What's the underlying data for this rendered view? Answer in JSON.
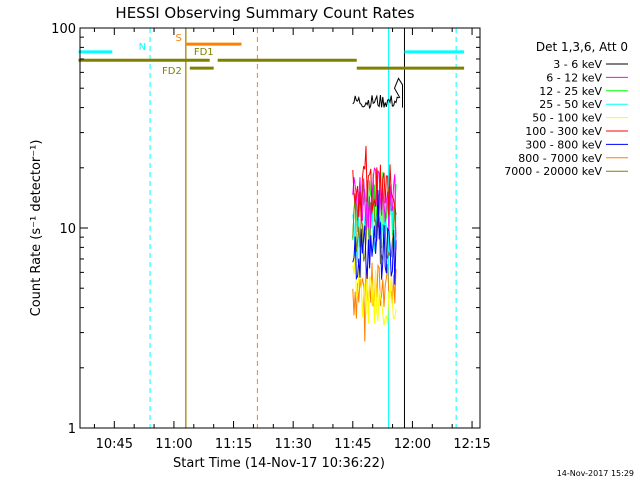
{
  "chart_data": {
    "type": "line",
    "title": "HESSI Observing Summary Count Rates",
    "xlabel": "Start Time (14-Nov-17 10:36:22)",
    "ylabel": "Count Rate (s⁻¹ detector⁻¹)",
    "yscale": "log",
    "ylim": [
      1,
      100
    ],
    "xlim_minutes": [
      636.37,
      737
    ],
    "x_ticks": [
      "10:45",
      "11:00",
      "11:15",
      "11:30",
      "11:45",
      "12:00",
      "12:15"
    ],
    "y_ticks": [
      "1",
      "10",
      "100"
    ],
    "legend_title": "Det 1,3,6, Att 0",
    "legend_position": "right",
    "timestamp": "14-Nov-2017 15:29",
    "series": [
      {
        "name": "3 - 6 keV",
        "color": "#000000",
        "x_range": [
          "11:45",
          "11:57"
        ],
        "level": 43
      },
      {
        "name": "6 - 12 keV",
        "color": "#ff00ff",
        "x_range": [
          "11:45",
          "11:56"
        ],
        "level": 15
      },
      {
        "name": "12 - 25 keV",
        "color": "#00ff00",
        "x_range": [
          "11:45",
          "11:56"
        ],
        "level": 13
      },
      {
        "name": "25 - 50 keV",
        "color": "#00ffff",
        "x_range": [
          "11:45",
          "11:56"
        ],
        "level": 10
      },
      {
        "name": "50 - 100 keV",
        "color": "#ffff00",
        "x_range": [
          "11:45",
          "11:56"
        ],
        "level": 5
      },
      {
        "name": "100 - 300 keV",
        "color": "#ff0000",
        "x_range": [
          "11:45",
          "11:56"
        ],
        "level": 15.5
      },
      {
        "name": "300 - 800 keV",
        "color": "#0000ff",
        "x_range": [
          "11:45",
          "11:56"
        ],
        "level": 8
      },
      {
        "name": "800 - 7000 keV",
        "color": "#ff8000",
        "x_range": [
          "11:45",
          "11:56"
        ],
        "level": 5
      },
      {
        "name": "7000 - 20000 keV",
        "color": "#808000",
        "x_range": [
          "11:45",
          "11:56"
        ],
        "level": 10
      }
    ],
    "flag_bars": [
      {
        "label": "N",
        "color": "#00ffff",
        "segments": [
          [
            "10:36",
            "10:44:30"
          ],
          [
            "11:58",
            "12:13"
          ]
        ],
        "level": 76
      },
      {
        "label": "S",
        "color": "#ff8000",
        "segments": [
          [
            "11:03",
            "11:17"
          ]
        ],
        "level": 83
      },
      {
        "label": "FD1",
        "color": "#808000",
        "segments": [
          [
            "10:36",
            "11:09"
          ],
          [
            "11:11",
            "11:46"
          ]
        ],
        "level": 69
      },
      {
        "label": "FD2",
        "color": "#808000",
        "segments": [
          [
            "11:04",
            "11:10"
          ],
          [
            "11:46",
            "12:13"
          ]
        ],
        "level": 63
      }
    ],
    "vertical_lines": [
      {
        "x": "10:36:22",
        "color": "#00ffff",
        "style": "solid"
      },
      {
        "x": "10:54",
        "color": "#00ffff",
        "style": "dashed"
      },
      {
        "x": "11:03",
        "color": "#ff8000",
        "style": "solid"
      },
      {
        "x": "11:03",
        "color": "#808000",
        "style": "solid"
      },
      {
        "x": "11:21",
        "color": "#ff8000",
        "style": "dashed"
      },
      {
        "x": "11:54",
        "color": "#00ffff",
        "style": "solid"
      },
      {
        "x": "11:58",
        "color": "#000000",
        "style": "solid"
      },
      {
        "x": "12:11",
        "color": "#00ffff",
        "style": "dashed"
      }
    ]
  }
}
